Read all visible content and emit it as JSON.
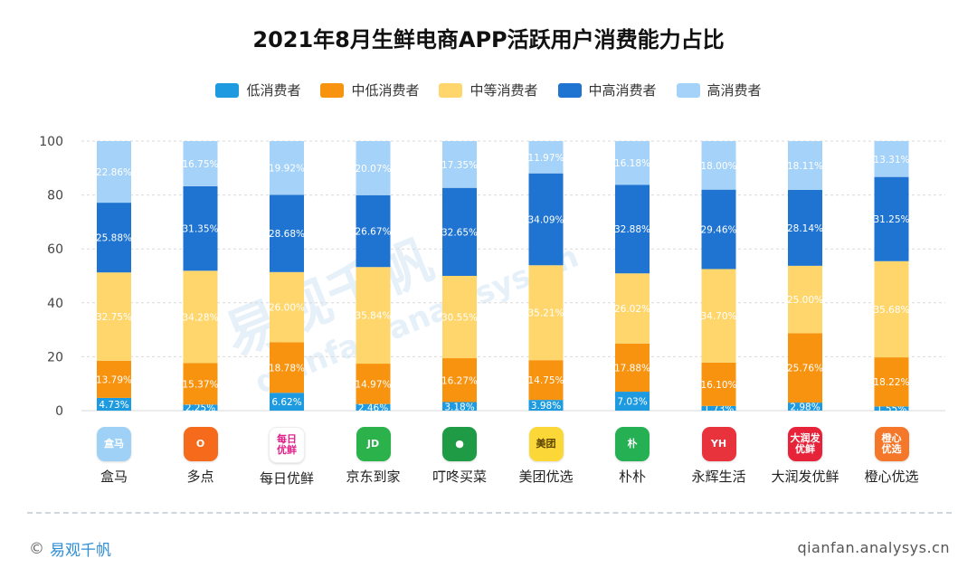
{
  "title": "2021年8月生鲜电商APP活跃用户消费能力占比",
  "footer": {
    "copyright_symbol": "©",
    "brand": "易观千帆",
    "site": "qianfan.analysys.cn"
  },
  "watermark": {
    "logo": "易观千帆",
    "site": "qianfan.analysys.cn"
  },
  "colors": {
    "low": "#1e9be0",
    "mid_low": "#f8930f",
    "mid": "#fed66b",
    "mid_high": "#1f74d2",
    "high": "#a5d2f8"
  },
  "apps": [
    {
      "name": "盒马",
      "icon_name": "hema-icon",
      "icon_text": "盒马",
      "icon_color": "#9ed1f5"
    },
    {
      "name": "多点",
      "icon_name": "duodian-icon",
      "icon_text": "O",
      "icon_color": "#f56b1b"
    },
    {
      "name": "每日优鲜",
      "icon_name": "meiriyouxian-icon",
      "icon_text": "每日\n优鲜",
      "icon_color": "#ffffff"
    },
    {
      "name": "京东到家",
      "icon_name": "jingdongdaojia-icon",
      "icon_text": "JD",
      "icon_color": "#2bb24a"
    },
    {
      "name": "叮咚买菜",
      "icon_name": "dingdongmaicai-icon",
      "icon_text": "●",
      "icon_color": "#1f9b46"
    },
    {
      "name": "美团优选",
      "icon_name": "meituanyouxuan-icon",
      "icon_text": "美团",
      "icon_color": "#fcd738"
    },
    {
      "name": "朴朴",
      "icon_name": "pupu-icon",
      "icon_text": "朴",
      "icon_color": "#25b053"
    },
    {
      "name": "永辉生活",
      "icon_name": "yonghuishenghuo-icon",
      "icon_text": "YH",
      "icon_color": "#e8323c"
    },
    {
      "name": "大润发优鲜",
      "icon_name": "darunfa-icon",
      "icon_text": "大润发\n优鲜",
      "icon_color": "#e7233a"
    },
    {
      "name": "橙心优选",
      "icon_name": "chengxinyouxuan-icon",
      "icon_text": "橙心\n优选",
      "icon_color": "#f5772a"
    }
  ],
  "chart_data": {
    "type": "bar",
    "stacked": true,
    "categories": [
      "盒马",
      "多点",
      "每日优鲜",
      "京东到家",
      "叮咚买菜",
      "美团优选",
      "朴朴",
      "永辉生活",
      "大润发优鲜",
      "橙心优选"
    ],
    "series": [
      {
        "name": "低消费者",
        "color": "#1e9be0",
        "values": [
          4.73,
          2.25,
          6.62,
          2.46,
          3.18,
          3.98,
          7.03,
          1.73,
          2.98,
          1.55
        ],
        "labels": [
          "4.73%",
          "2.25%",
          "6.62%",
          "2.46%",
          "3.18%",
          "3.98%",
          "7.03%",
          "1.73%",
          "2.98%",
          "1.55%"
        ]
      },
      {
        "name": "中低消费者",
        "color": "#f8930f",
        "values": [
          13.79,
          15.37,
          18.78,
          14.97,
          16.27,
          14.75,
          17.88,
          16.1,
          25.76,
          18.22
        ],
        "labels": [
          "13.79%",
          "15.37%",
          "18.78%",
          "14.97%",
          "16.27%",
          "14.75%",
          "17.88%",
          "16.10%",
          "25.76%",
          "18.22%"
        ]
      },
      {
        "name": "中等消费者",
        "color": "#fed66b",
        "values": [
          32.75,
          34.28,
          26.0,
          35.84,
          30.55,
          35.21,
          26.02,
          34.7,
          25.0,
          35.68
        ],
        "labels": [
          "32.75%",
          "34.28%",
          "26.00%",
          "35.84%",
          "30.55%",
          "35.21%",
          "26.02%",
          "34.70%",
          "25.00%",
          "35.68%"
        ]
      },
      {
        "name": "中高消费者",
        "color": "#1f74d2",
        "values": [
          25.88,
          31.35,
          28.68,
          26.67,
          32.65,
          34.09,
          32.88,
          29.46,
          28.14,
          31.25
        ],
        "labels": [
          "25.88%",
          "31.35%",
          "28.68%",
          "26.67%",
          "32.65%",
          "34.09%",
          "32.88%",
          "29.46%",
          "28.14%",
          "31.25%"
        ]
      },
      {
        "name": "高消费者",
        "color": "#a5d2f8",
        "values": [
          22.86,
          16.75,
          19.92,
          20.07,
          17.35,
          11.97,
          16.18,
          18.0,
          18.11,
          13.31
        ],
        "labels": [
          "22.86%",
          "16.75%",
          "19.92%",
          "20.07%",
          "17.35%",
          "11.97%",
          "16.18%",
          "18.00%",
          "18.11%",
          "13.31%"
        ]
      }
    ],
    "yticks": [
      "0",
      "20",
      "40",
      "60",
      "80",
      "100"
    ],
    "ylim": [
      0,
      100
    ],
    "legend_position": "top-center",
    "grid": true
  }
}
